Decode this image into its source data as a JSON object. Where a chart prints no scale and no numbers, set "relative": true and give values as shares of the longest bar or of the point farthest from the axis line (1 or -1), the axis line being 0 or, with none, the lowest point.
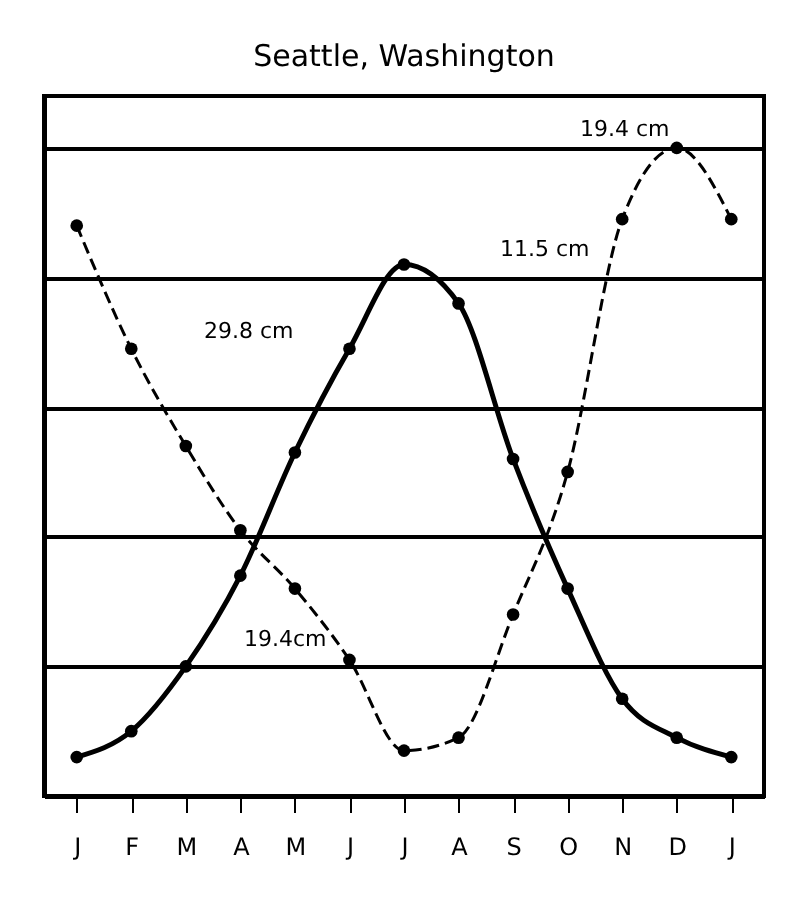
{
  "chart_data": {
    "type": "line",
    "title": "Seattle, Washington",
    "relative": true,
    "categories": [
      "J",
      "F",
      "M",
      "A",
      "M",
      "J",
      "J",
      "A",
      "S",
      "O",
      "N",
      "D",
      "J"
    ],
    "series": [
      {
        "color": "#000000",
        "line_style": "dashed",
        "values": [
          0.88,
          0.69,
          0.54,
          0.41,
          0.32,
          0.21,
          0.07,
          0.09,
          0.28,
          0.5,
          0.89,
          1.0,
          0.89
        ]
      },
      {
        "color": "#000000",
        "line_style": "solid",
        "values": [
          0.06,
          0.1,
          0.2,
          0.34,
          0.53,
          0.69,
          0.82,
          0.76,
          0.52,
          0.32,
          0.15,
          0.09,
          0.06
        ]
      }
    ],
    "marker": "circle",
    "grid": "y",
    "annotations": [
      "19.4 cm",
      "11.5 cm",
      "29.8 cm",
      "19.4cm"
    ]
  }
}
